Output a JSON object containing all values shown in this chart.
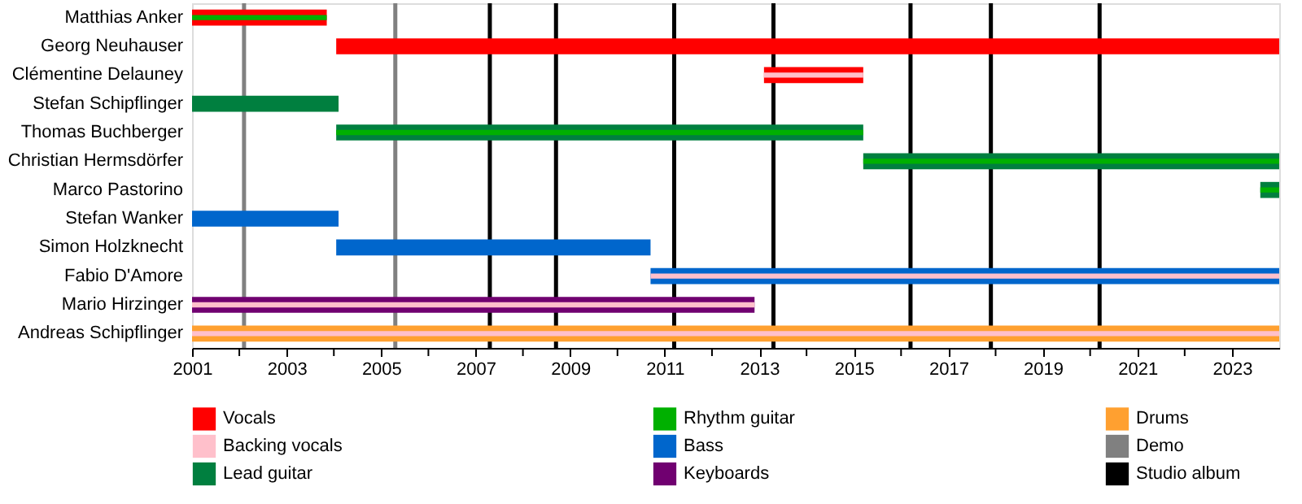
{
  "chart_data": {
    "type": "bar",
    "orientation": "horizontal",
    "legend": "bottom",
    "grid": false,
    "categories": [
      "Matthias Anker",
      "Georg Neuhauser",
      "Clémentine Delauney",
      "Stefan Schipflinger",
      "Thomas Buchberger",
      "Christian Hermsdörfer",
      "Marco Pastorino",
      "Stefan Wanker",
      "Simon Holzknecht",
      "Fabio D'Amore",
      "Mario Hirzinger",
      "Andreas Schipflinger"
    ],
    "xlim": [
      2001,
      2024
    ],
    "xticks": [
      2001,
      {
        "value": 2002,
        "label": null
      },
      2003,
      {
        "value": 2004,
        "label": null
      },
      2005,
      {
        "value": 2006,
        "label": null
      },
      2007,
      {
        "value": 2008,
        "label": null
      },
      2009,
      {
        "value": 2010,
        "label": null
      },
      2011,
      {
        "value": 2012,
        "label": null
      },
      2013,
      {
        "value": 2014,
        "label": null
      },
      2015,
      {
        "value": 2016,
        "label": null
      },
      2017,
      {
        "value": 2018,
        "label": null
      },
      2019,
      {
        "value": 2020,
        "label": null
      },
      2021,
      {
        "value": 2022,
        "label": null
      },
      2023
    ],
    "series": [
      {
        "name": "Vocals",
        "color": "#ff0000",
        "base": [
          2001,
          2004.05,
          2013.1,
          null,
          null,
          null,
          null,
          null,
          null,
          null,
          null,
          null
        ],
        "values": [
          2.85,
          19.95,
          2.1,
          null,
          null,
          null,
          null,
          null,
          null,
          null,
          null,
          null
        ]
      },
      {
        "name": "Backing vocals",
        "color": "#ffc0cb",
        "base": [
          null,
          null,
          2013.1,
          null,
          null,
          null,
          null,
          null,
          null,
          2010.7,
          2001,
          2001
        ],
        "values": [
          null,
          null,
          2.1,
          null,
          null,
          null,
          null,
          null,
          null,
          13.3,
          11.9,
          23
        ]
      },
      {
        "name": "Lead guitar",
        "color": "#007f3f",
        "base": [
          null,
          null,
          null,
          2001,
          2004.05,
          2015.2,
          2023.6,
          null,
          null,
          null,
          null,
          null
        ],
        "values": [
          null,
          null,
          null,
          3.1,
          11.15,
          8.8,
          0.4,
          null,
          null,
          null,
          null,
          null
        ]
      },
      {
        "name": "Rhythm guitar",
        "color": "#00b000",
        "base": [
          2001,
          null,
          null,
          null,
          2004.05,
          2015.2,
          2023.6,
          null,
          null,
          null,
          null,
          null
        ],
        "values": [
          2.85,
          null,
          null,
          null,
          11.15,
          8.8,
          0.4,
          null,
          null,
          null,
          null,
          null
        ]
      },
      {
        "name": "Bass",
        "color": "#0066cc",
        "base": [
          null,
          null,
          null,
          null,
          null,
          null,
          null,
          2001,
          2004.05,
          2010.7,
          null,
          null
        ],
        "values": [
          null,
          null,
          null,
          null,
          null,
          null,
          null,
          3.1,
          6.65,
          13.3,
          null,
          null
        ]
      },
      {
        "name": "Keyboards",
        "color": "#700070",
        "base": [
          null,
          null,
          null,
          null,
          null,
          null,
          null,
          null,
          null,
          null,
          2001,
          null
        ],
        "values": [
          null,
          null,
          null,
          null,
          null,
          null,
          null,
          null,
          null,
          null,
          11.9,
          null
        ]
      },
      {
        "name": "Drums",
        "color": "#ffa030",
        "base": [
          null,
          null,
          null,
          null,
          null,
          null,
          null,
          null,
          null,
          null,
          null,
          2001
        ],
        "values": [
          null,
          null,
          null,
          null,
          null,
          null,
          null,
          null,
          null,
          null,
          null,
          23
        ]
      }
    ],
    "ref_lines": [
      {
        "axis": "x",
        "value": 2002.1,
        "label": "Demo",
        "color": "#808080"
      },
      {
        "axis": "x",
        "value": 2005.3,
        "color": "#808080"
      },
      {
        "axis": "x",
        "value": 2007.3,
        "label": "Studio album",
        "color": "#000000"
      },
      {
        "axis": "x",
        "value": 2008.7,
        "color": "#000000"
      },
      {
        "axis": "x",
        "value": 2011.2,
        "color": "#000000"
      },
      {
        "axis": "x",
        "value": 2013.3,
        "color": "#000000"
      },
      {
        "axis": "x",
        "value": 2016.2,
        "color": "#000000"
      },
      {
        "axis": "x",
        "value": 2017.9,
        "color": "#000000"
      },
      {
        "axis": "x",
        "value": 2020.2,
        "color": "#000000"
      }
    ]
  }
}
